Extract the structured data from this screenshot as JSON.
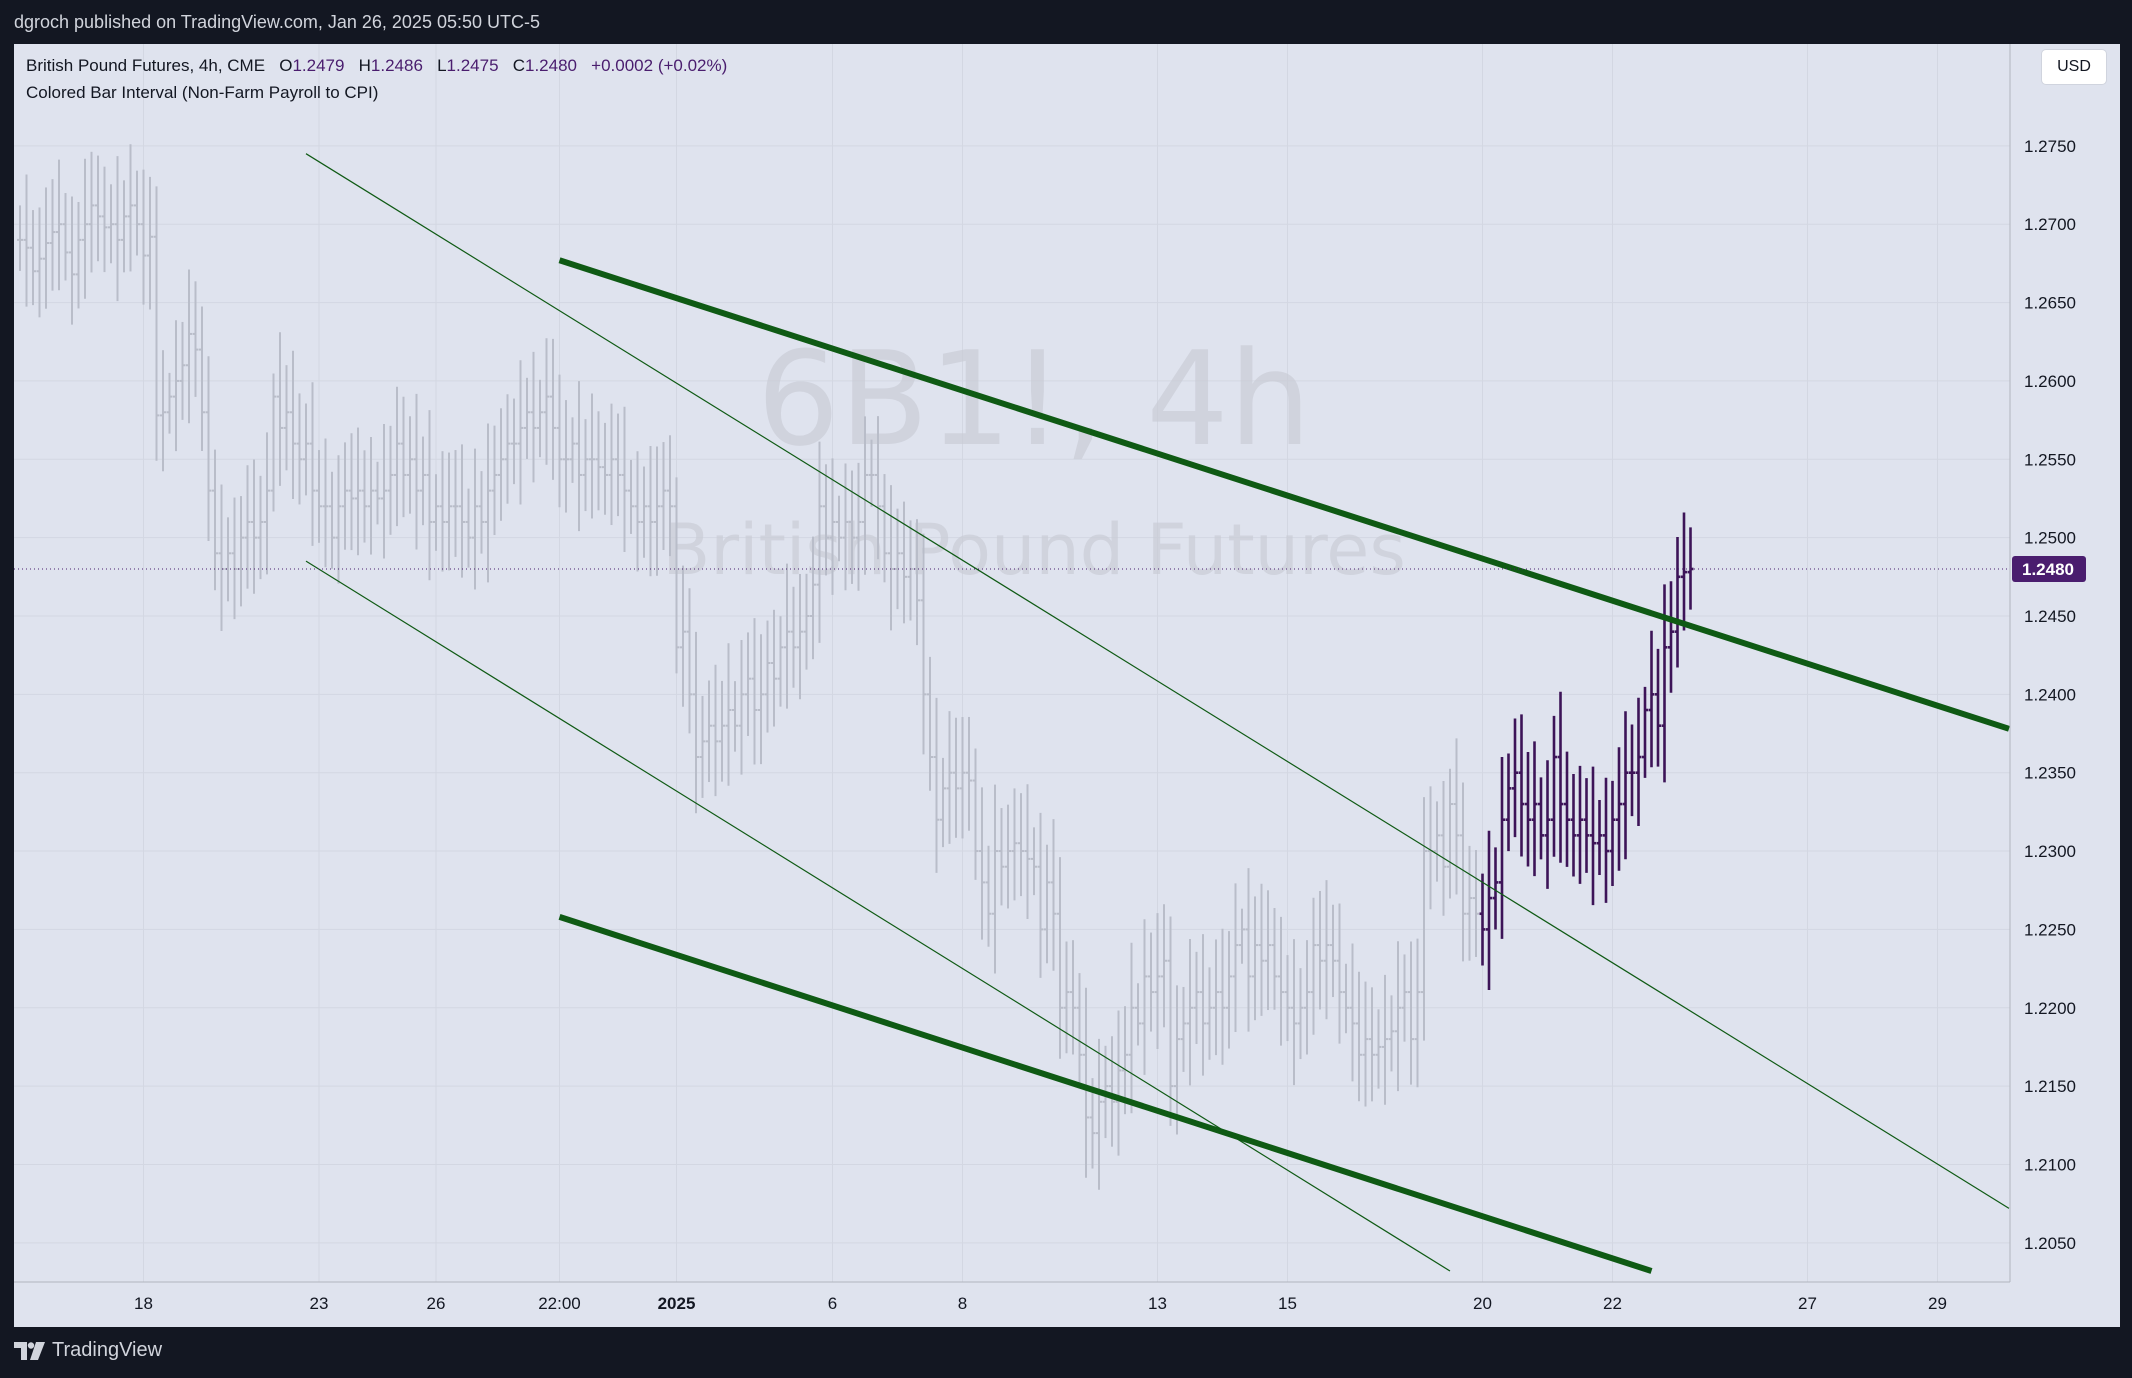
{
  "header": {
    "publisher_text": "dgroch published on TradingView.com, Jan 26, 2025 05:50 UTC-5"
  },
  "legend": {
    "instrument": "British Pound Futures, 4h, CME",
    "open_label": "O",
    "open": "1.2479",
    "high_label": "H",
    "high": "1.2486",
    "low_label": "L",
    "low": "1.2475",
    "close_label": "C",
    "close": "1.2480",
    "change": "+0.0002 (+0.02%)",
    "indicator": "Colored Bar Interval (Non-Farm Payroll to CPI)"
  },
  "currency_button": "USD",
  "watermark": {
    "symbol": "6B1!, 4h",
    "name": "British Pound Futures"
  },
  "footer": {
    "brand": "TradingView"
  },
  "colors": {
    "background": "#dfe3ee",
    "bar_default": "#b9bdc9",
    "bar_highlight": "#3d1458",
    "trend_line": "#0f5a14",
    "price_tag": "#4a1d6e"
  },
  "chart_data": {
    "type": "ohlc",
    "price_axis_ticks": [
      "1.2750",
      "1.2700",
      "1.2650",
      "1.2600",
      "1.2550",
      "1.2500",
      "1.2450",
      "1.2400",
      "1.2350",
      "1.2300",
      "1.2250",
      "1.2200",
      "1.2150",
      "1.2100",
      "1.2050"
    ],
    "ylim": [
      1.2025,
      1.2815
    ],
    "current_price": "1.2480",
    "time_axis_ticks": [
      {
        "label": "18",
        "bar": 19,
        "bold": false
      },
      {
        "label": "23",
        "bar": 46,
        "bold": false
      },
      {
        "label": "26",
        "bar": 64,
        "bold": false
      },
      {
        "label": "22:00",
        "bar": 83,
        "bold": false
      },
      {
        "label": "2025",
        "bar": 101,
        "bold": true
      },
      {
        "label": "6",
        "bar": 125,
        "bold": false
      },
      {
        "label": "8",
        "bar": 145,
        "bold": false
      },
      {
        "label": "13",
        "bar": 175,
        "bold": false
      },
      {
        "label": "15",
        "bar": 195,
        "bold": false
      },
      {
        "label": "20",
        "bar": 225,
        "bold": false
      },
      {
        "label": "22",
        "bar": 245,
        "bold": false
      },
      {
        "label": "27",
        "bar": 275,
        "bold": false
      },
      {
        "label": "29",
        "bar": 295,
        "bold": false
      }
    ],
    "close_series": [
      1.269,
      1.2685,
      1.267,
      1.2678,
      1.2688,
      1.2695,
      1.27,
      1.2682,
      1.2668,
      1.269,
      1.27,
      1.2712,
      1.2705,
      1.2698,
      1.27,
      1.269,
      1.2705,
      1.2712,
      1.27,
      1.268,
      1.2692,
      1.2578,
      1.258,
      1.259,
      1.26,
      1.261,
      1.263,
      1.262,
      1.258,
      1.253,
      1.249,
      1.248,
      1.249,
      1.248,
      1.25,
      1.251,
      1.25,
      1.251,
      1.253,
      1.259,
      1.257,
      1.258,
      1.256,
      1.255,
      1.256,
      1.253,
      1.252,
      1.252,
      1.25,
      1.252,
      1.253,
      1.2525,
      1.253,
      1.252,
      1.253,
      1.2525,
      1.253,
      1.254,
      1.256,
      1.254,
      1.255,
      1.253,
      1.254,
      1.251,
      1.252,
      1.251,
      1.252,
      1.252,
      1.251,
      1.25,
      1.252,
      1.251,
      1.253,
      1.254,
      1.255,
      1.256,
      1.256,
      1.257,
      1.258,
      1.257,
      1.258,
      1.259,
      1.257,
      1.255,
      1.255,
      1.256,
      1.254,
      1.255,
      1.255,
      1.2545,
      1.254,
      1.255,
      1.254,
      1.253,
      1.252,
      1.251,
      1.252,
      1.251,
      1.252,
      1.253,
      1.252,
      1.243,
      1.244,
      1.24,
      1.236,
      1.237,
      1.238,
      1.237,
      1.238,
      1.239,
      1.238,
      1.24,
      1.241,
      1.239,
      1.24,
      1.242,
      1.241,
      1.243,
      1.244,
      1.243,
      1.244,
      1.245,
      1.247,
      1.252,
      1.25,
      1.251,
      1.25,
      1.251,
      1.25,
      1.251,
      1.254,
      1.254,
      1.252,
      1.249,
      1.248,
      1.249,
      1.2475,
      1.248,
      1.246,
      1.24,
      1.236,
      1.232,
      1.234,
      1.235,
      1.234,
      1.235,
      1.2345,
      1.23,
      1.228,
      1.226,
      1.23,
      1.229,
      1.23,
      1.2305,
      1.23,
      1.2295,
      1.229,
      1.225,
      1.228,
      1.226,
      1.22,
      1.221,
      1.22,
      1.217,
      1.213,
      1.212,
      1.214,
      1.215,
      1.214,
      1.216,
      1.217,
      1.22,
      1.219,
      1.222,
      1.221,
      1.222,
      1.223,
      1.215,
      1.218,
      1.219,
      1.22,
      1.221,
      1.219,
      1.22,
      1.221,
      1.22,
      1.222,
      1.224,
      1.225,
      1.222,
      1.224,
      1.223,
      1.224,
      1.222,
      1.221,
      1.22,
      1.219,
      1.22,
      1.221,
      1.224,
      1.223,
      1.224,
      1.223,
      1.221,
      1.22,
      1.219,
      1.217,
      1.218,
      1.217,
      1.2175,
      1.218,
      1.2185,
      1.22,
      1.221,
      1.218,
      1.221,
      1.23,
      1.23,
      1.231,
      1.229,
      1.233,
      1.231,
      1.226,
      1.227,
      1.226,
      1.225,
      1.227,
      1.228,
      1.232,
      1.234,
      1.235,
      1.233,
      1.232,
      1.233,
      1.231,
      1.232,
      1.236,
      1.233,
      1.232,
      1.231,
      1.232,
      1.231,
      1.2305,
      1.231,
      1.23,
      1.232,
      1.233,
      1.235,
      1.235,
      1.236,
      1.239,
      1.24,
      1.238,
      1.243,
      1.244,
      1.2475,
      1.2478,
      1.248
    ],
    "highlight_from_bar": 225,
    "trend_lines": [
      {
        "name": "upper-channel-thick",
        "from": {
          "bar": 83,
          "price": 1.2677
        },
        "to": {
          "bar": 306,
          "price": 1.2378
        },
        "style": "thick"
      },
      {
        "name": "lower-channel-thick",
        "from": {
          "bar": 83,
          "price": 1.2258
        },
        "to": {
          "bar": 251,
          "price": 1.2032
        },
        "style": "thick"
      },
      {
        "name": "upper-channel-thin",
        "from": {
          "bar": 44,
          "price": 1.2745
        },
        "to": {
          "bar": 306,
          "price": 1.2072
        },
        "style": "thin"
      },
      {
        "name": "lower-channel-thin",
        "from": {
          "bar": 44,
          "price": 1.2485
        },
        "to": {
          "bar": 220,
          "price": 1.2032
        },
        "style": "thin"
      }
    ]
  }
}
